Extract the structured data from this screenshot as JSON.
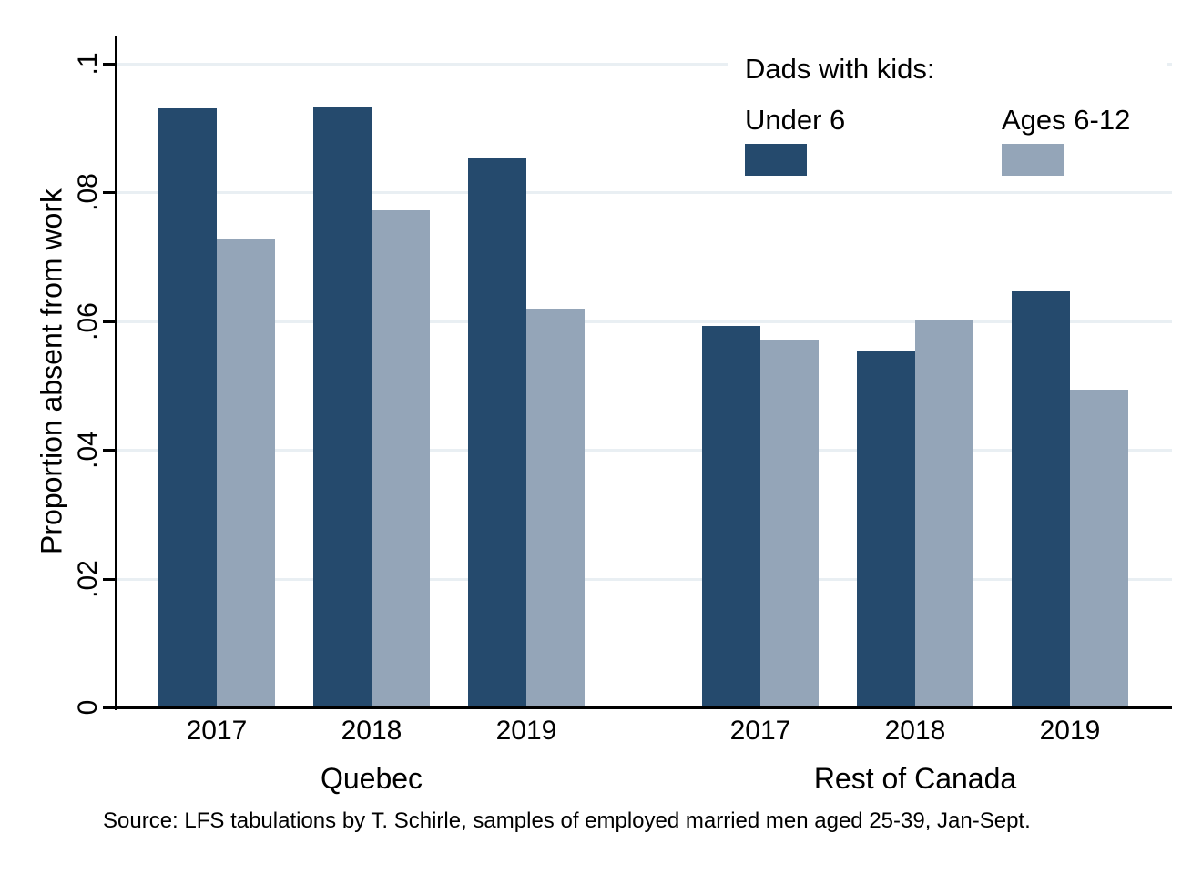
{
  "chart_data": {
    "type": "bar",
    "title": "",
    "ylabel": "Proportion absent from work",
    "ylim": [
      0,
      0.1043
    ],
    "grid": true,
    "legend_position": "top-right-inside",
    "yticks": [
      {
        "value": 0,
        "label": "0"
      },
      {
        "value": 0.02,
        "label": ".02"
      },
      {
        "value": 0.04,
        "label": ".04"
      },
      {
        "value": 0.06,
        "label": ".06"
      },
      {
        "value": 0.08,
        "label": ".08"
      },
      {
        "value": 0.1,
        "label": ".1"
      }
    ],
    "legend": {
      "title": "Dads with kids:",
      "entries": [
        {
          "label": "Under 6",
          "color": "#254a6d"
        },
        {
          "label": "Ages 6-12",
          "color": "#94a5b8"
        }
      ]
    },
    "groups": [
      {
        "label": "Quebec",
        "categories": [
          "2017",
          "2018",
          "2019"
        ],
        "series": [
          {
            "name": "Under 6",
            "values": [
              0.093,
              0.0932,
              0.0853
            ]
          },
          {
            "name": "Ages 6-12",
            "values": [
              0.0727,
              0.0772,
              0.0619
            ]
          }
        ]
      },
      {
        "label": "Rest of Canada",
        "categories": [
          "2017",
          "2018",
          "2019"
        ],
        "series": [
          {
            "name": "Under 6",
            "values": [
              0.0592,
              0.0555,
              0.0646
            ]
          },
          {
            "name": "Ages 6-12",
            "values": [
              0.0572,
              0.0601,
              0.0493
            ]
          }
        ]
      }
    ],
    "source_note": "Source: LFS tabulations by T. Schirle, samples of employed married men aged 25-39, Jan-Sept.",
    "colors": {
      "axis": "#000000",
      "gridline": "#e9eff3",
      "background": "#ffffff"
    }
  }
}
